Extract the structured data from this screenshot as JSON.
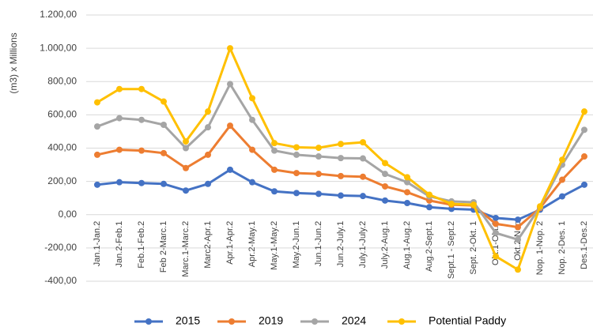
{
  "chart_data": {
    "type": "line",
    "y_label": "(m3) x Millions",
    "categories": [
      "Jan.1-Jan.2",
      "Jan.2-Feb.1",
      "Feb.1-Feb.2",
      "Feb 2-Marc.1",
      "Marc.1-Marc.2",
      "Marc2-Apr.1",
      "Apr.1-Apr.2",
      "Apr.2-May.1",
      "May.1-May.2",
      "May.2-Jun.1",
      "Jun.1-Jun.2",
      "Jun.2-July.1",
      "July.1-July.2",
      "July.2-Aug.1",
      "Aug.1-Aug.2",
      "Aug.2-Sept.1",
      "Sept.1 - Sept.2",
      "Sept. 2-Okt. 1",
      "Okt.1-Okt.2",
      "Okt.2-Nop",
      "Nop. 1-Nop. 2",
      "Nop. 2-Des. 1",
      "Des.1-Des.2"
    ],
    "series": [
      {
        "name": "2015",
        "color": "#4472c4",
        "values": [
          180,
          195,
          190,
          185,
          145,
          185,
          270,
          195,
          140,
          130,
          125,
          115,
          112,
          85,
          70,
          45,
          35,
          30,
          -20,
          -30,
          30,
          110,
          180
        ]
      },
      {
        "name": "2019",
        "color": "#ed7d31",
        "values": [
          360,
          390,
          385,
          370,
          280,
          360,
          535,
          390,
          270,
          250,
          245,
          232,
          228,
          170,
          135,
          85,
          60,
          55,
          -55,
          -75,
          40,
          210,
          350
        ]
      },
      {
        "name": "2024",
        "color": "#a5a5a5",
        "values": [
          530,
          580,
          570,
          540,
          400,
          525,
          785,
          570,
          385,
          360,
          350,
          340,
          338,
          245,
          195,
          110,
          80,
          75,
          -110,
          -150,
          45,
          300,
          510
        ]
      },
      {
        "name": "Potential Paddy",
        "color": "#ffc000",
        "values": [
          675,
          755,
          755,
          680,
          440,
          620,
          1000,
          700,
          430,
          405,
          402,
          425,
          435,
          310,
          225,
          120,
          65,
          60,
          -250,
          -330,
          50,
          330,
          620
        ]
      }
    ],
    "ylim": [
      -400,
      1200
    ],
    "yticks": [
      {
        "value": -400,
        "label": "-400,00"
      },
      {
        "value": -200,
        "label": "-200,00"
      },
      {
        "value": 0,
        "label": "0,00"
      },
      {
        "value": 200,
        "label": "200,00"
      },
      {
        "value": 400,
        "label": "400,00"
      },
      {
        "value": 600,
        "label": "600,00"
      },
      {
        "value": 800,
        "label": "800,00"
      },
      {
        "value": 1000,
        "label": "1.000,00"
      },
      {
        "value": 1200,
        "label": "1.200,00"
      }
    ],
    "grid": true,
    "legend": "bottom"
  }
}
